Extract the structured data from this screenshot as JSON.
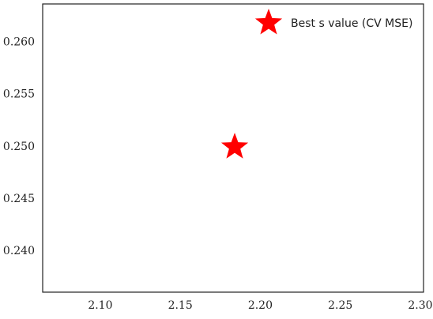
{
  "chart_data": {
    "type": "scatter",
    "title": "",
    "xlabel": "",
    "ylabel": "",
    "xlim": [
      2.064,
      2.302
    ],
    "ylim": [
      0.236,
      0.2636
    ],
    "x_ticks": [
      "2.10",
      "2.15",
      "2.20",
      "2.25",
      "2.30"
    ],
    "y_ticks": [
      "0.240",
      "0.245",
      "0.250",
      "0.255",
      "0.260"
    ],
    "grid": false,
    "legend_position": "top-right",
    "series": [
      {
        "name": "Best s value (CV MSE)",
        "marker": "star",
        "color": "#ff0000",
        "points": [
          {
            "x": 2.184,
            "y": 0.2499
          }
        ]
      }
    ]
  }
}
